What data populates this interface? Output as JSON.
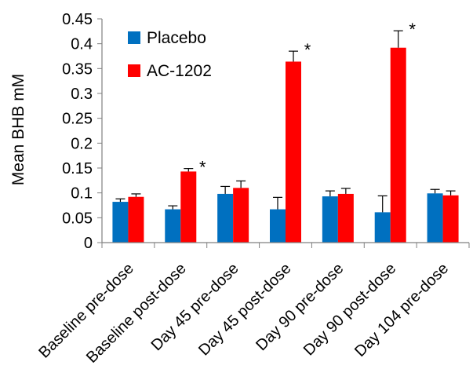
{
  "chart_data": {
    "type": "bar",
    "title": "",
    "xlabel": "",
    "ylabel": "Mean BHB mM",
    "ylim": [
      0,
      0.45
    ],
    "yticks": [
      "0",
      "0.05",
      "0.1",
      "0.15",
      "0.2",
      "0.25",
      "0.3",
      "0.35",
      "0.4",
      "0.45"
    ],
    "ytick_values": [
      0,
      0.05,
      0.1,
      0.15,
      0.2,
      0.25,
      0.3,
      0.35,
      0.4,
      0.45
    ],
    "grid": false,
    "legend_placement": "top-left",
    "categories": [
      "Baseline pre-dose",
      "Baseline post-dose",
      "Day 45 pre-dose",
      "Day 45 post-dose",
      "Day 90 pre-dose",
      "Day 90 post-dose",
      "Day 104 pre-dose"
    ],
    "series": [
      {
        "name": "Placebo",
        "color": "#0070C0",
        "values": [
          0.082,
          0.067,
          0.098,
          0.067,
          0.093,
          0.061,
          0.099
        ],
        "errors": [
          0.006,
          0.007,
          0.015,
          0.024,
          0.011,
          0.033,
          0.008
        ]
      },
      {
        "name": "AC-1202",
        "color": "#FF0000",
        "values": [
          0.092,
          0.143,
          0.11,
          0.364,
          0.098,
          0.392,
          0.095
        ],
        "errors": [
          0.006,
          0.006,
          0.014,
          0.021,
          0.011,
          0.034,
          0.009
        ]
      }
    ],
    "significance_marker": "*",
    "significant_categories": [
      1,
      3,
      5
    ]
  }
}
